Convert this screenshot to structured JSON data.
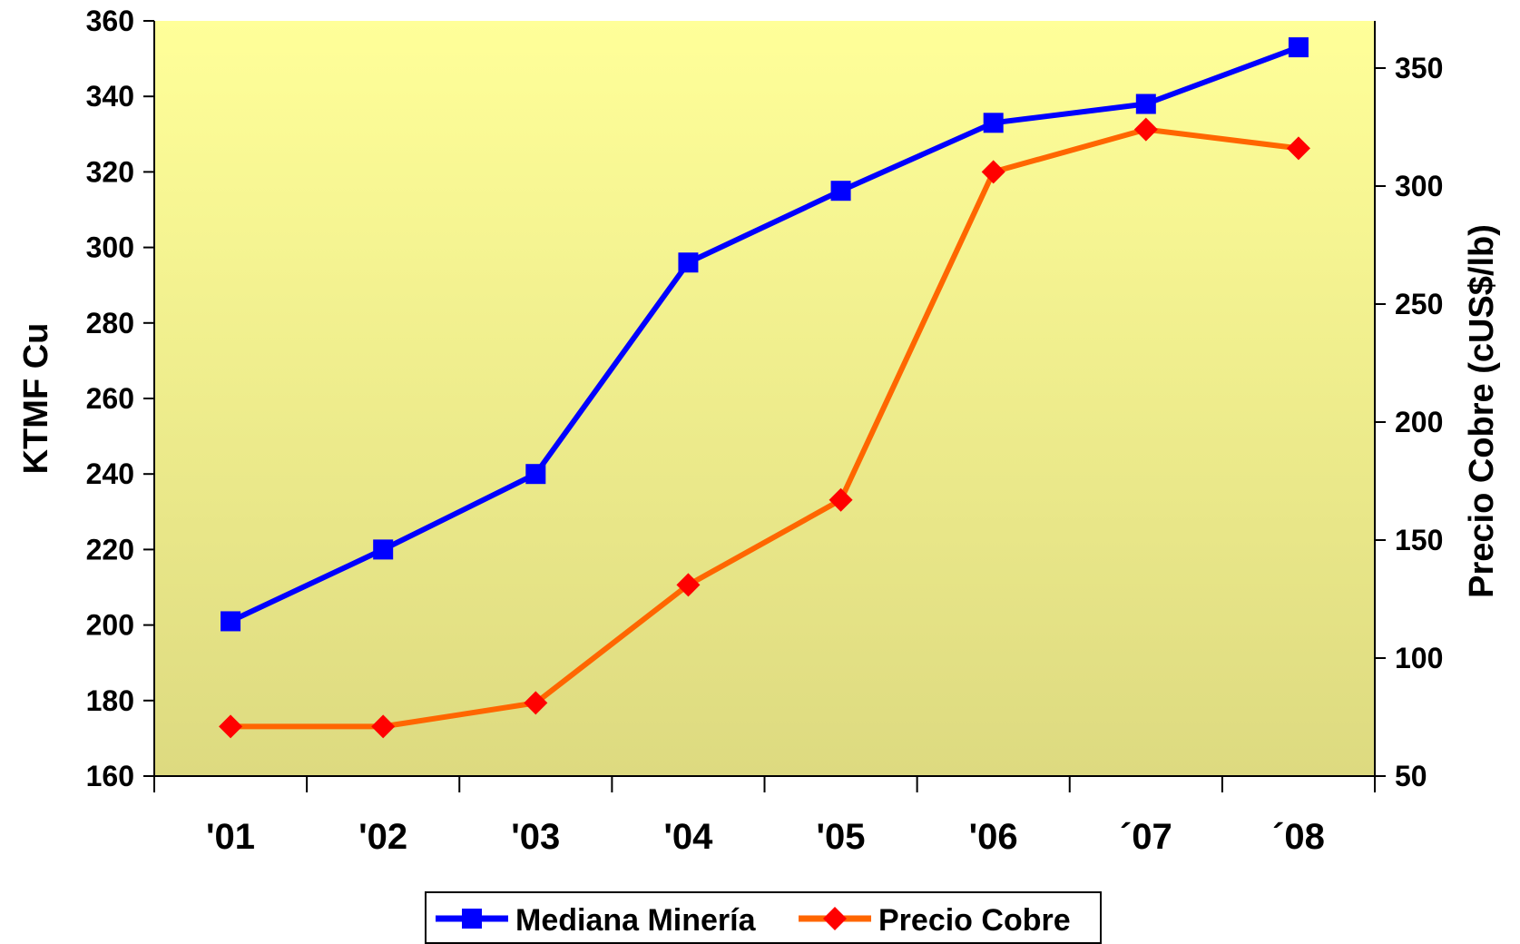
{
  "chart_data": {
    "type": "line",
    "categories": [
      "'01",
      "'02",
      "'03",
      "'04",
      "'05",
      "'06",
      "´07",
      "´08"
    ],
    "series": [
      {
        "name": "Mediana Minería",
        "axis": "left",
        "color": "#0000FF",
        "marker": "square",
        "values": [
          201,
          220,
          240,
          296,
          315,
          333,
          338,
          353
        ]
      },
      {
        "name": "Precio Cobre",
        "axis": "right",
        "color": "#FF6600",
        "marker_color": "#FF0000",
        "marker": "diamond",
        "values": [
          71,
          71,
          81,
          131,
          167,
          306,
          324,
          316
        ]
      }
    ],
    "ylabel": "KTMF Cu",
    "y2label": "Precio Cobre (cUS$/lb)",
    "ylim": [
      160,
      360
    ],
    "yticks": [
      160,
      180,
      200,
      220,
      240,
      260,
      280,
      300,
      320,
      340,
      360
    ],
    "y2lim": [
      50,
      370
    ],
    "y2ticks": [
      50,
      100,
      150,
      200,
      250,
      300,
      350
    ],
    "grid": false,
    "legend_position": "bottom",
    "plot_background": [
      "#FFFF99",
      "#DDDA80"
    ]
  }
}
